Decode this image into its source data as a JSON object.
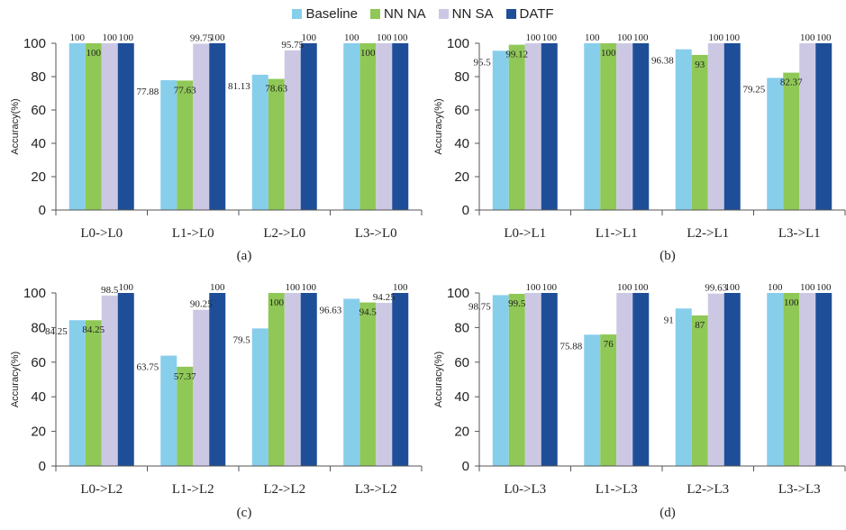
{
  "legend": [
    {
      "name": "Baseline",
      "color": "#87CEEB"
    },
    {
      "name": "NN NA",
      "color": "#8FC856"
    },
    {
      "name": "NN SA",
      "color": "#CCC8E4"
    },
    {
      "name": "DATF",
      "color": "#1F4E99"
    }
  ],
  "chart_data": [
    {
      "type": "bar",
      "panel_label": "(a)",
      "ylabel": "Accuracy(%)",
      "ylim": [
        0,
        100
      ],
      "yticks": [
        0,
        20,
        40,
        60,
        80,
        100
      ],
      "categories": [
        "L0->L0",
        "L1->L0",
        "L2->L0",
        "L3->L0"
      ],
      "series": [
        {
          "name": "Baseline",
          "values": [
            100,
            77.88,
            81.13,
            100
          ],
          "labels": [
            "100",
            "77.88",
            "81.13",
            "100"
          ]
        },
        {
          "name": "NN NA",
          "values": [
            100,
            77.63,
            78.63,
            100
          ],
          "labels": [
            "100",
            "77.63",
            "78.63",
            "100"
          ]
        },
        {
          "name": "NN SA",
          "values": [
            100,
            99.75,
            95.75,
            100
          ],
          "labels": [
            "100",
            "99.75",
            "95.75",
            "100"
          ]
        },
        {
          "name": "DATF",
          "values": [
            100,
            100,
            100,
            100
          ],
          "labels": [
            "100",
            "100",
            "100",
            "100"
          ]
        }
      ]
    },
    {
      "type": "bar",
      "panel_label": "(b)",
      "ylabel": "Accuracy(%)",
      "ylim": [
        0,
        100
      ],
      "yticks": [
        0,
        20,
        40,
        60,
        80,
        100
      ],
      "categories": [
        "L0->L1",
        "L1->L1",
        "L2->L1",
        "L3->L1"
      ],
      "series": [
        {
          "name": "Baseline",
          "values": [
            95.5,
            100,
            96.38,
            79.25
          ],
          "labels": [
            "95.5",
            "100",
            "96.38",
            "79.25"
          ]
        },
        {
          "name": "NN NA",
          "values": [
            99.12,
            100,
            93,
            82.37
          ],
          "labels": [
            "99.12",
            "100",
            "93",
            "82.37"
          ]
        },
        {
          "name": "NN SA",
          "values": [
            100,
            100,
            100,
            100
          ],
          "labels": [
            "100",
            "100",
            "100",
            "100"
          ]
        },
        {
          "name": "DATF",
          "values": [
            100,
            100,
            100,
            100
          ],
          "labels": [
            "100",
            "100",
            "100",
            "100"
          ]
        }
      ]
    },
    {
      "type": "bar",
      "panel_label": "(c)",
      "ylabel": "Accuracy(%)",
      "ylim": [
        0,
        100
      ],
      "yticks": [
        0,
        20,
        40,
        60,
        80,
        100
      ],
      "categories": [
        "L0->L2",
        "L1->L2",
        "L2->L2",
        "L3->L2"
      ],
      "series": [
        {
          "name": "Baseline",
          "values": [
            84.25,
            63.75,
            79.5,
            96.63
          ],
          "labels": [
            "84.25",
            "63.75",
            "79.5",
            "96.63"
          ]
        },
        {
          "name": "NN NA",
          "values": [
            84.25,
            57.37,
            100,
            94.5
          ],
          "labels": [
            "84.25",
            "57.37",
            "100",
            "94.5"
          ]
        },
        {
          "name": "NN SA",
          "values": [
            98.5,
            90.25,
            100,
            94.25
          ],
          "labels": [
            "98.5",
            "90.25",
            "100",
            "94.25"
          ]
        },
        {
          "name": "DATF",
          "values": [
            100,
            100,
            100,
            100
          ],
          "labels": [
            "100",
            "100",
            "100",
            "100"
          ]
        }
      ]
    },
    {
      "type": "bar",
      "panel_label": "(d)",
      "ylabel": "Accuracy(%)",
      "ylim": [
        0,
        100
      ],
      "yticks": [
        0,
        20,
        40,
        60,
        80,
        100
      ],
      "categories": [
        "L0->L3",
        "L1->L3",
        "L2->L3",
        "L3->L3"
      ],
      "series": [
        {
          "name": "Baseline",
          "values": [
            98.75,
            75.88,
            91,
            100
          ],
          "labels": [
            "98.75",
            "75.88",
            "91",
            "100"
          ]
        },
        {
          "name": "NN NA",
          "values": [
            99.5,
            76,
            87,
            100
          ],
          "labels": [
            "99.5",
            "76",
            "87",
            "100"
          ]
        },
        {
          "name": "NN SA",
          "values": [
            100,
            100,
            99.63,
            100
          ],
          "labels": [
            "100",
            "100",
            "99.63",
            "100"
          ]
        },
        {
          "name": "DATF",
          "values": [
            100,
            100,
            100,
            100
          ],
          "labels": [
            "100",
            "100",
            "100",
            "100"
          ]
        }
      ]
    }
  ]
}
